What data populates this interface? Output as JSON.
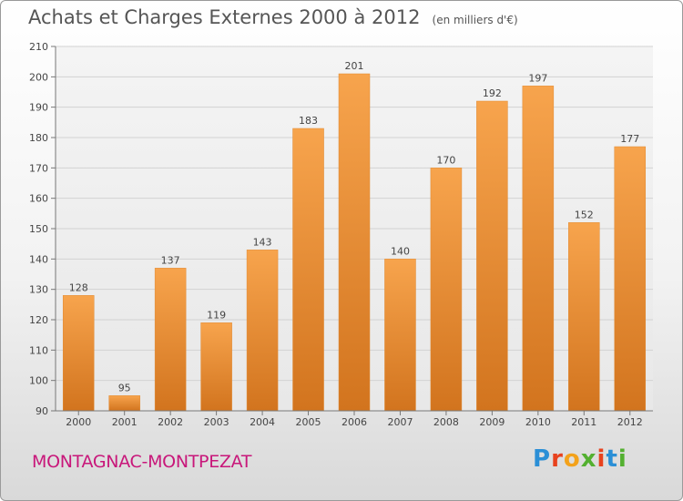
{
  "header": {
    "title": "Achats et Charges Externes 2000 à 2012",
    "unit": "(en milliers d'€)"
  },
  "footer": {
    "commune": "MONTAGNAC-MONTPEZAT",
    "logo_text": "Proxiti",
    "logo_colors": [
      "#2b8fd6",
      "#e8421e",
      "#f3a21b",
      "#53b030",
      "#e8421e",
      "#2b8fd6",
      "#53b030"
    ]
  },
  "chart_data": {
    "type": "bar",
    "categories": [
      "2000",
      "2001",
      "2002",
      "2003",
      "2004",
      "2005",
      "2006",
      "2007",
      "2008",
      "2009",
      "2010",
      "2011",
      "2012"
    ],
    "values": [
      128,
      95,
      137,
      119,
      143,
      183,
      201,
      140,
      170,
      192,
      197,
      152,
      177
    ],
    "ylim": [
      90,
      210
    ],
    "yticks": [
      90,
      100,
      110,
      120,
      130,
      140,
      150,
      160,
      170,
      180,
      190,
      200,
      210
    ],
    "grid": true,
    "bar_color_top": "#f7a44d",
    "bar_color_bottom": "#d2741e"
  }
}
